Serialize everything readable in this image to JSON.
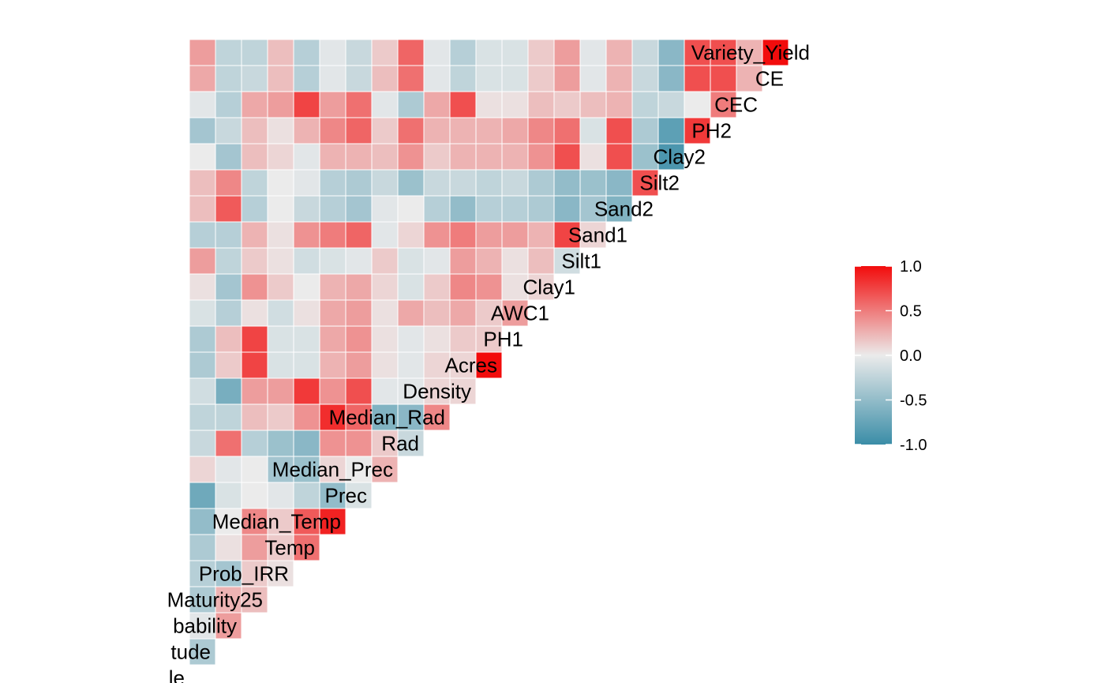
{
  "chart_data": {
    "type": "heatmap",
    "title": "",
    "layout": "lower-triangle correlation matrix, variable names on the diagonal",
    "variables": [
      "le",
      "tude",
      "bability",
      "Maturity25",
      "Prob_IRR",
      "Temp",
      "Median_Temp",
      "Prec",
      "Median_Prec",
      "Rad",
      "Median_Rad",
      "Density",
      "Acres",
      "PH1",
      "AWC1",
      "Clay1",
      "Silt1",
      "Sand1",
      "Sand2",
      "Silt2",
      "Clay2",
      "PH2",
      "CEC",
      "CE",
      "Variety_Yield"
    ],
    "matrix": [
      [],
      [
        -0.35
      ],
      [
        -0.05,
        0.35
      ],
      [
        -0.35,
        0.25,
        0.2
      ],
      [
        -0.3,
        -0.4,
        0.15,
        0.05
      ],
      [
        -0.35,
        0.05,
        0.35,
        0.15,
        0.55
      ],
      [
        -0.5,
        0.0,
        0.45,
        0.15,
        0.65,
        0.9
      ],
      [
        -0.7,
        -0.1,
        0.0,
        -0.05,
        -0.25,
        -0.5,
        -0.1
      ],
      [
        0.1,
        -0.05,
        0.0,
        -0.4,
        -0.45,
        0.1,
        0.0,
        0.25
      ],
      [
        -0.2,
        0.55,
        -0.3,
        -0.45,
        -0.55,
        0.4,
        0.4,
        0.15,
        -0.2
      ],
      [
        -0.25,
        -0.25,
        0.2,
        0.15,
        0.4,
        0.85,
        0.6,
        -0.6,
        -0.55,
        0.45
      ],
      [
        -0.15,
        -0.65,
        0.35,
        0.35,
        0.8,
        0.4,
        0.7,
        -0.05,
        -0.05,
        0.1,
        0.1
      ],
      [
        -0.35,
        0.15,
        0.75,
        -0.1,
        -0.1,
        0.25,
        0.35,
        0.05,
        -0.05,
        0.1,
        0.1,
        1.0
      ],
      [
        -0.35,
        0.2,
        0.75,
        -0.1,
        -0.1,
        0.3,
        0.4,
        0.05,
        -0.05,
        0.05,
        0.15,
        0.15
      ],
      [
        -0.1,
        -0.3,
        0.05,
        -0.15,
        0.05,
        0.3,
        0.35,
        0.05,
        0.3,
        0.2,
        0.3,
        0.15,
        0.35
      ],
      [
        0.05,
        -0.4,
        0.4,
        0.15,
        0.0,
        0.25,
        0.3,
        0.1,
        -0.1,
        0.15,
        0.45,
        0.4,
        0.05,
        0.1
      ],
      [
        0.35,
        -0.25,
        0.15,
        0.05,
        -0.15,
        -0.1,
        -0.05,
        0.15,
        -0.1,
        -0.05,
        0.35,
        0.25,
        0.05,
        0.2,
        -0.15
      ],
      [
        -0.3,
        -0.3,
        0.25,
        0.05,
        0.4,
        0.5,
        0.6,
        -0.05,
        0.1,
        0.4,
        0.5,
        0.35,
        0.35,
        0.25,
        0.75,
        0.1
      ],
      [
        0.2,
        0.65,
        -0.3,
        0.0,
        -0.2,
        -0.3,
        -0.4,
        -0.05,
        0.0,
        -0.3,
        -0.5,
        -0.3,
        -0.3,
        -0.35,
        -0.55,
        -0.4,
        -0.6
      ],
      [
        0.2,
        0.45,
        -0.25,
        0.0,
        -0.05,
        -0.3,
        -0.35,
        -0.2,
        -0.45,
        -0.2,
        -0.2,
        -0.25,
        -0.2,
        -0.35,
        -0.5,
        -0.45,
        -0.55,
        0.7
      ],
      [
        0.0,
        -0.4,
        0.2,
        0.1,
        -0.05,
        0.25,
        0.25,
        0.2,
        0.4,
        0.15,
        0.25,
        0.25,
        0.25,
        0.4,
        0.7,
        0.05,
        0.7,
        -0.45,
        -0.9
      ],
      [
        -0.4,
        -0.2,
        0.2,
        0.05,
        0.25,
        0.45,
        0.6,
        0.15,
        0.55,
        0.25,
        0.25,
        0.25,
        0.3,
        0.45,
        0.55,
        -0.1,
        0.7,
        -0.35,
        -0.8,
        0.8
      ],
      [
        -0.05,
        -0.3,
        0.3,
        0.35,
        0.75,
        0.35,
        0.55,
        -0.05,
        -0.35,
        0.3,
        0.7,
        0.05,
        0.05,
        0.2,
        0.15,
        0.2,
        0.25,
        -0.25,
        -0.2,
        0.0,
        0.5
      ],
      [
        0.3,
        -0.25,
        -0.2,
        0.2,
        -0.3,
        -0.05,
        -0.2,
        0.2,
        0.55,
        -0.05,
        -0.25,
        -0.1,
        -0.1,
        0.15,
        0.35,
        -0.05,
        0.25,
        -0.2,
        -0.55,
        0.7,
        0.7,
        0.25
      ],
      [
        0.35,
        -0.25,
        -0.25,
        0.2,
        -0.3,
        -0.05,
        -0.2,
        0.15,
        0.6,
        -0.05,
        -0.3,
        -0.1,
        -0.1,
        0.15,
        0.35,
        -0.05,
        0.25,
        -0.2,
        -0.55,
        0.7,
        0.7,
        0.25,
        1.0
      ],
      [
        -0.25,
        -0.05,
        0.2,
        0.25,
        0.35,
        0.1,
        0.35,
        -0.05,
        -0.2,
        0.05,
        0.25,
        0.05,
        0.05,
        0.1,
        -0.05,
        -0.15,
        0.2,
        -0.05,
        -0.15,
        0.15,
        0.25,
        0.3,
        -0.1,
        -0.15
      ]
    ],
    "color_scale": {
      "low": "#3A8DA7",
      "mid": "#EBEBEB",
      "high": "#F20C0C",
      "limits": [
        -1.0,
        1.0
      ],
      "ticks": [
        "1.0",
        "0.5",
        "0.0",
        "-0.5",
        "-1.0"
      ]
    },
    "legend": "right",
    "grid": false
  }
}
